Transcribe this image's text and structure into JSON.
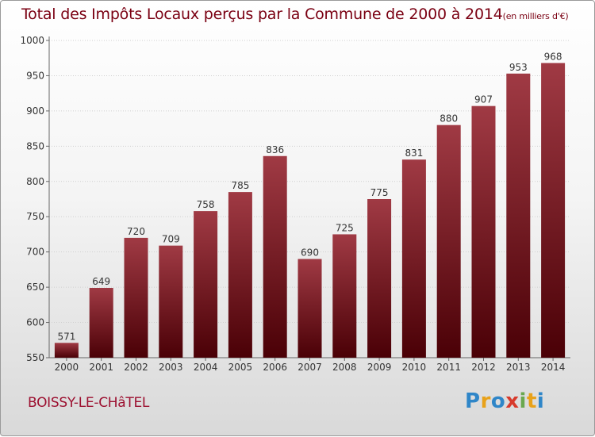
{
  "header": {
    "title": "Total des Impôts Locaux perçus par la Commune de 2000 à 2014",
    "subtitle": "(en milliers d'€)"
  },
  "footer": {
    "commune": "BOISSY-LE-CHâTEL",
    "logo_letters": [
      "P",
      "r",
      "o",
      "x",
      "i",
      "t",
      "i"
    ],
    "logo_colors": [
      "#2f86c8",
      "#e8a21a",
      "#2f86c8",
      "#d73a2c",
      "#6aa84f",
      "#e8a21a",
      "#2f86c8"
    ]
  },
  "colors": {
    "bar_top": "#a03a44",
    "bar_bottom": "#4a0006",
    "text": "#7a0012",
    "axis": "#666666",
    "grid": "#cfcfcf"
  },
  "chart_data": {
    "type": "bar",
    "title": "Total des Impôts Locaux perçus par la Commune de 2000 à 2014",
    "xlabel": "",
    "ylabel": "",
    "categories": [
      "2000",
      "2001",
      "2002",
      "2003",
      "2004",
      "2005",
      "2006",
      "2007",
      "2008",
      "2009",
      "2010",
      "2011",
      "2012",
      "2013",
      "2014"
    ],
    "values": [
      571,
      649,
      720,
      709,
      758,
      785,
      836,
      690,
      725,
      775,
      831,
      880,
      907,
      953,
      968
    ],
    "ylim": [
      550,
      1000
    ],
    "yticks": [
      550,
      600,
      650,
      700,
      750,
      800,
      850,
      900,
      950,
      1000
    ],
    "grid": true
  }
}
